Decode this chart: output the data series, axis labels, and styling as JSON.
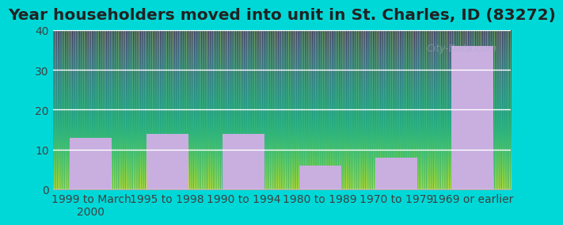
{
  "categories": [
    "1999 to March\n2000",
    "1995 to 1998",
    "1990 to 1994",
    "1980 to 1989",
    "1970 to 1979",
    "1969 or earlier"
  ],
  "values": [
    13,
    14,
    14,
    6,
    8,
    36
  ],
  "bar_color": "#c9aee0",
  "title": "Year householders moved into unit in St. Charles, ID (83272)",
  "ylim": [
    0,
    40
  ],
  "yticks": [
    0,
    10,
    20,
    30,
    40
  ],
  "background_color": "#00d8d8",
  "plot_bg_top": "#e8f5e0",
  "plot_bg_bottom": "#f5f0fa",
  "grid_color": "#ffffff",
  "title_fontsize": 14.5,
  "tick_fontsize": 10,
  "watermark_text": "City-Data.com"
}
